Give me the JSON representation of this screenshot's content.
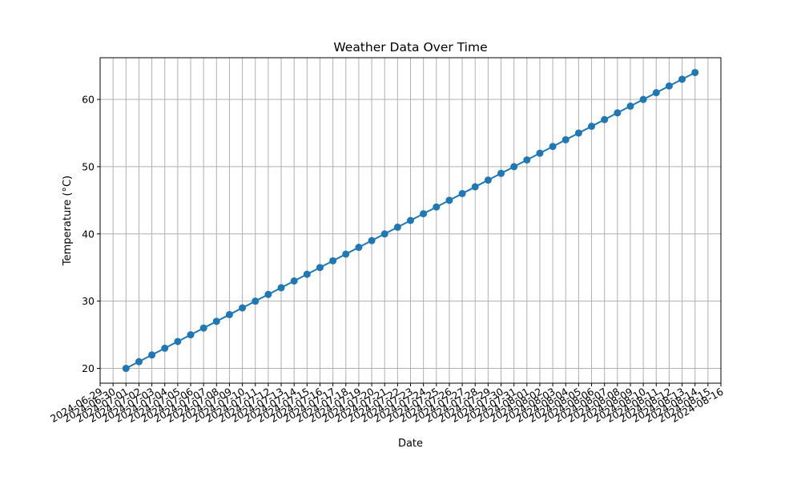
{
  "chart_data": {
    "type": "line",
    "title": "Weather Data Over Time",
    "xlabel": "Date",
    "ylabel": "Temperature (°C)",
    "x_axis_kind": "date",
    "xlim": [
      "2024-06-29",
      "2024-08-16"
    ],
    "ylim": [
      17.8,
      66.2
    ],
    "yticks": [
      20,
      30,
      40,
      50,
      60
    ],
    "grid": true,
    "legend": "none",
    "x_tick_labels": [
      "2024-06-29",
      "2024-06-30",
      "2024-07-01",
      "2024-07-02",
      "2024-07-03",
      "2024-07-04",
      "2024-07-05",
      "2024-07-06",
      "2024-07-07",
      "2024-07-08",
      "2024-07-09",
      "2024-07-10",
      "2024-07-11",
      "2024-07-12",
      "2024-07-13",
      "2024-07-14",
      "2024-07-15",
      "2024-07-16",
      "2024-07-17",
      "2024-07-18",
      "2024-07-19",
      "2024-07-20",
      "2024-07-21",
      "2024-07-22",
      "2024-07-23",
      "2024-07-24",
      "2024-07-25",
      "2024-07-26",
      "2024-07-27",
      "2024-07-28",
      "2024-07-29",
      "2024-07-30",
      "2024-07-31",
      "2024-08-01",
      "2024-08-02",
      "2024-08-03",
      "2024-08-04",
      "2024-08-05",
      "2024-08-06",
      "2024-08-07",
      "2024-08-08",
      "2024-08-09",
      "2024-08-10",
      "2024-08-11",
      "2024-08-12",
      "2024-08-13",
      "2024-08-14",
      "2024-08-15",
      "2024-08-16"
    ],
    "series": [
      {
        "color": "#1f77b4",
        "marker": "circle",
        "x": [
          "2024-07-01",
          "2024-07-02",
          "2024-07-03",
          "2024-07-04",
          "2024-07-05",
          "2024-07-06",
          "2024-07-07",
          "2024-07-08",
          "2024-07-09",
          "2024-07-10",
          "2024-07-11",
          "2024-07-12",
          "2024-07-13",
          "2024-07-14",
          "2024-07-15",
          "2024-07-16",
          "2024-07-17",
          "2024-07-18",
          "2024-07-19",
          "2024-07-20",
          "2024-07-21",
          "2024-07-22",
          "2024-07-23",
          "2024-07-24",
          "2024-07-25",
          "2024-07-26",
          "2024-07-27",
          "2024-07-28",
          "2024-07-29",
          "2024-07-30",
          "2024-07-31",
          "2024-08-01",
          "2024-08-02",
          "2024-08-03",
          "2024-08-04",
          "2024-08-05",
          "2024-08-06",
          "2024-08-07",
          "2024-08-08",
          "2024-08-09",
          "2024-08-10",
          "2024-08-11",
          "2024-08-12",
          "2024-08-13",
          "2024-08-14"
        ],
        "y": [
          20,
          21,
          22,
          23,
          24,
          25,
          26,
          27,
          28,
          29,
          30,
          31,
          32,
          33,
          34,
          35,
          36,
          37,
          38,
          39,
          40,
          41,
          42,
          43,
          44,
          45,
          46,
          47,
          48,
          49,
          50,
          51,
          52,
          53,
          54,
          55,
          56,
          57,
          58,
          59,
          60,
          61,
          62,
          63,
          64
        ]
      }
    ]
  }
}
